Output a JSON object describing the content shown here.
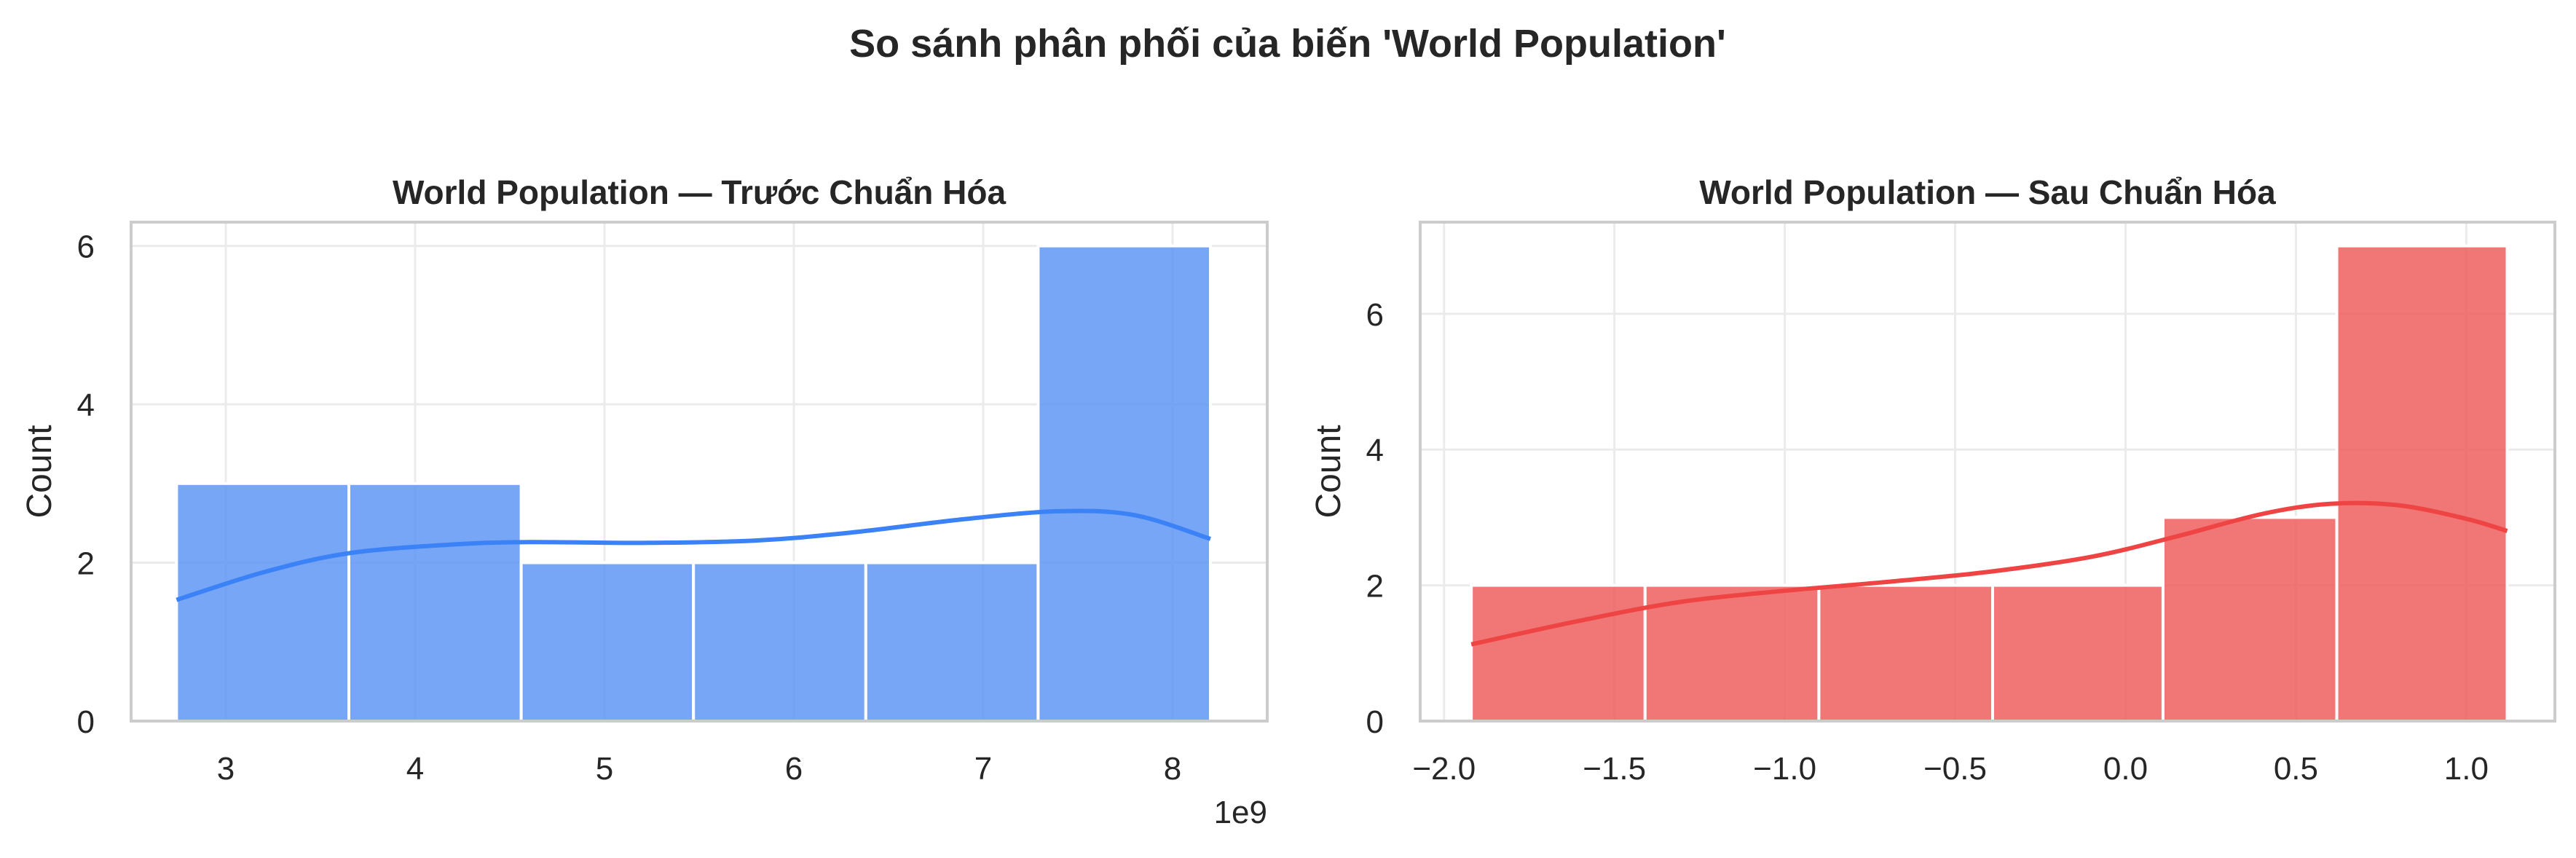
{
  "figure": {
    "title": "So sánh phân phối của biến 'World Population'"
  },
  "colors": {
    "left_bar": "#5f97f5",
    "left_kde": "#3b82f6",
    "right_bar": "#ee5e5e",
    "right_kde": "#ef4444"
  },
  "chart_data": [
    {
      "type": "histogram",
      "title": "World Population — Trước Chuẩn Hóa",
      "xlabel": "",
      "ylabel": "Count",
      "x_offset_label": "1e9",
      "xlim": [
        2.5,
        8.5
      ],
      "ylim": [
        0,
        6.3
      ],
      "x_ticks": [
        3,
        4,
        5,
        6,
        7,
        8
      ],
      "x_tick_labels": [
        "3",
        "4",
        "5",
        "6",
        "7",
        "8"
      ],
      "y_ticks": [
        0,
        2,
        4,
        6
      ],
      "y_tick_labels": [
        "0",
        "2",
        "4",
        "6"
      ],
      "bin_edges": [
        2.74,
        3.65,
        4.56,
        5.47,
        6.38,
        7.29,
        8.2
      ],
      "values": [
        3,
        3,
        2,
        2,
        2,
        6
      ],
      "kde": {
        "x": [
          2.74,
          3.2,
          3.65,
          4.2,
          4.6,
          5.2,
          5.8,
          6.3,
          6.9,
          7.4,
          7.8,
          8.2
        ],
        "y": [
          1.53,
          1.88,
          2.12,
          2.23,
          2.26,
          2.25,
          2.28,
          2.38,
          2.55,
          2.65,
          2.6,
          2.3
        ]
      },
      "grid": true,
      "legend": "none"
    },
    {
      "type": "histogram",
      "title": "World Population — Sau Chuẩn Hóa",
      "xlabel": "",
      "ylabel": "Count",
      "xlim": [
        -2.07,
        1.26
      ],
      "ylim": [
        0,
        7.35
      ],
      "x_ticks": [
        -2.0,
        -1.5,
        -1.0,
        -0.5,
        0.0,
        0.5,
        1.0
      ],
      "x_tick_labels": [
        "−2.0",
        "−1.5",
        "−1.0",
        "−0.5",
        "0.0",
        "0.5",
        "1.0"
      ],
      "y_ticks": [
        0,
        2,
        4,
        6
      ],
      "y_tick_labels": [
        "0",
        "2",
        "4",
        "6"
      ],
      "bin_edges": [
        -1.92,
        -1.41,
        -0.9,
        -0.39,
        0.11,
        0.62,
        1.12
      ],
      "values": [
        2,
        2,
        2,
        2,
        3,
        7
      ],
      "kde": {
        "x": [
          -1.92,
          -1.6,
          -1.3,
          -1.0,
          -0.7,
          -0.4,
          -0.1,
          0.15,
          0.4,
          0.6,
          0.8,
          1.0,
          1.12
        ],
        "y": [
          1.13,
          1.48,
          1.76,
          1.92,
          2.05,
          2.2,
          2.42,
          2.72,
          3.05,
          3.2,
          3.18,
          2.98,
          2.8
        ]
      },
      "grid": true,
      "legend": "none"
    }
  ]
}
